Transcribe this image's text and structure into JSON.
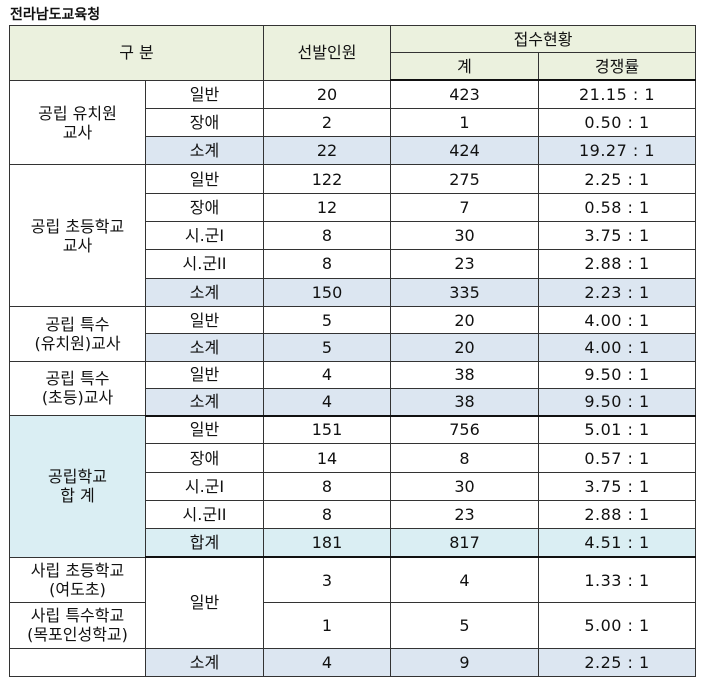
{
  "title": "전라남도교육청",
  "header": {
    "category": "구 분",
    "selected": "선발인원",
    "applications": "접수현황",
    "total": "계",
    "ratio": "경쟁률"
  },
  "groups": {
    "kinder_public": {
      "name": [
        "공립 유치원",
        "교사"
      ],
      "rows": [
        {
          "type": "일반",
          "selected": "20",
          "applied": "423",
          "ratio": "21.15 : 1"
        },
        {
          "type": "장애",
          "selected": "2",
          "applied": "1",
          "ratio": "0.50 : 1"
        },
        {
          "type": "소계",
          "selected": "22",
          "applied": "424",
          "ratio": "19.27 : 1"
        }
      ]
    },
    "elem_public": {
      "name": [
        "공립 초등학교",
        "교사"
      ],
      "rows": [
        {
          "type": "일반",
          "selected": "122",
          "applied": "275",
          "ratio": "2.25 : 1"
        },
        {
          "type": "장애",
          "selected": "12",
          "applied": "7",
          "ratio": "0.58 : 1"
        },
        {
          "type": "시.군I",
          "selected": "8",
          "applied": "30",
          "ratio": "3.75 : 1"
        },
        {
          "type": "시.군II",
          "selected": "8",
          "applied": "23",
          "ratio": "2.88 : 1"
        },
        {
          "type": "소계",
          "selected": "150",
          "applied": "335",
          "ratio": "2.23 : 1"
        }
      ]
    },
    "special_kinder": {
      "name": [
        "공립 특수",
        "(유치원)교사"
      ],
      "rows": [
        {
          "type": "일반",
          "selected": "5",
          "applied": "20",
          "ratio": "4.00 : 1"
        },
        {
          "type": "소계",
          "selected": "5",
          "applied": "20",
          "ratio": "4.00 : 1"
        }
      ]
    },
    "special_elem": {
      "name": [
        "공립 특수",
        "(초등)교사"
      ],
      "rows": [
        {
          "type": "일반",
          "selected": "4",
          "applied": "38",
          "ratio": "9.50 : 1"
        },
        {
          "type": "소계",
          "selected": "4",
          "applied": "38",
          "ratio": "9.50 : 1"
        }
      ]
    },
    "public_total": {
      "name": [
        "공립학교",
        "합 계"
      ],
      "rows": [
        {
          "type": "일반",
          "selected": "151",
          "applied": "756",
          "ratio": "5.01 : 1"
        },
        {
          "type": "장애",
          "selected": "14",
          "applied": "8",
          "ratio": "0.57 : 1"
        },
        {
          "type": "시.군I",
          "selected": "8",
          "applied": "30",
          "ratio": "3.75 : 1"
        },
        {
          "type": "시.군II",
          "selected": "8",
          "applied": "23",
          "ratio": "2.88 : 1"
        },
        {
          "type": "합계",
          "selected": "181",
          "applied": "817",
          "ratio": "4.51 : 1"
        }
      ]
    },
    "private": {
      "type": "일반",
      "rows": [
        {
          "name": [
            "사립 초등학교",
            "(여도초)"
          ],
          "selected": "3",
          "applied": "4",
          "ratio": "1.33 : 1"
        },
        {
          "name": [
            "사립 특수학교",
            "(목포인성학교)"
          ],
          "selected": "1",
          "applied": "5",
          "ratio": "5.00 : 1"
        }
      ],
      "subtotal": {
        "type": "소계",
        "selected": "4",
        "applied": "9",
        "ratio": "2.25 : 1"
      }
    }
  }
}
